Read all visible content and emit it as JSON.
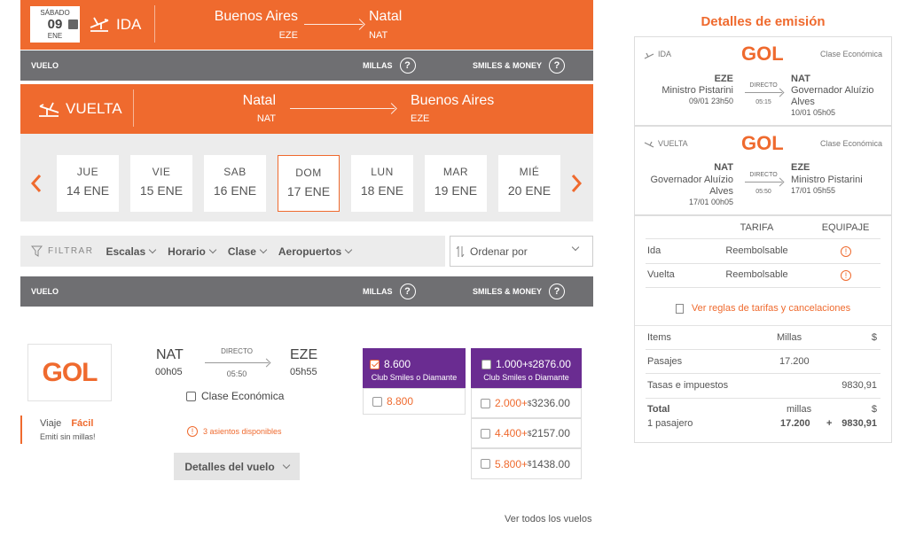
{
  "ida": {
    "day_name": "SÁBADO",
    "day_num": "09",
    "month": "ENE",
    "label": "IDA",
    "from_city": "Buenos Aires",
    "from_code": "EZE",
    "to_city": "Natal",
    "to_code": "NAT"
  },
  "header_bar": {
    "vuelo": "VUELO",
    "millas": "MILLAS",
    "smiles_money": "SMILES & MONEY",
    "q": "?"
  },
  "vuelta": {
    "label": "VUELTA",
    "from_city": "Natal",
    "from_code": "NAT",
    "to_city": "Buenos Aires",
    "to_code": "EZE"
  },
  "dates": [
    {
      "dow": "JUE",
      "date": "14 ENE"
    },
    {
      "dow": "VIE",
      "date": "15 ENE"
    },
    {
      "dow": "SAB",
      "date": "16 ENE"
    },
    {
      "dow": "DOM",
      "date": "17 ENE"
    },
    {
      "dow": "LUN",
      "date": "18 ENE"
    },
    {
      "dow": "MAR",
      "date": "19 ENE"
    },
    {
      "dow": "MIÉ",
      "date": "20 ENE"
    }
  ],
  "filters": {
    "filtrar": "FILTRAR",
    "items": [
      "Escalas",
      "Horario",
      "Clase",
      "Aeropuertos"
    ],
    "sort": "Ordenar por"
  },
  "flight": {
    "airline": "GOL",
    "tag_prefix": "Viaje",
    "tag_word": "Fácil",
    "tag_sub": "Emití sin millas!",
    "from": "NAT",
    "dep": "00h05",
    "to": "EZE",
    "arr": "05h55",
    "type": "DIRECTO",
    "duration": "05:50",
    "cabin": "Clase Económica",
    "seats": "3 asientos disponibles",
    "details_btn": "Detalles del vuelo",
    "millas_top": "8.600",
    "club": "Club Smiles o Diamante",
    "millas_bottom": "8.800",
    "sm_top_miles": "1.000+",
    "sm_top_price": "2876.00",
    "sm_rows": [
      {
        "miles": "2.000+",
        "price": "3236.00"
      },
      {
        "miles": "4.400+",
        "price": "2157.00"
      },
      {
        "miles": "5.800+",
        "price": "1438.00"
      }
    ],
    "dollar": "$"
  },
  "see_all": "Ver todos los vuelos",
  "panel": {
    "title": "Detalles de emisión",
    "ida": {
      "label": "IDA",
      "cabin": "Clase Económica",
      "from": "EZE",
      "from_name": "Ministro Pistarini",
      "from_time": "09/01 23h50",
      "type": "DIRECTO",
      "duration": "05:15",
      "to": "NAT",
      "to_name1": "Governador Aluízio",
      "to_name2": "Alves",
      "to_time": "10/01 05h05"
    },
    "vuelta": {
      "label": "VUELTA",
      "cabin": "Clase Económica",
      "from": "NAT",
      "from_name1": "Governador Aluízio",
      "from_name2": "Alves",
      "from_time": "17/01 00h05",
      "type": "DIRECTO",
      "duration": "05:50",
      "to": "EZE",
      "to_name": "Ministro Pistarini",
      "to_time": "17/01 05h55"
    },
    "tarifa": "TARIFA",
    "equipaje": "EQUIPAJE",
    "ida_row": "Ida",
    "vuelta_row": "Vuelta",
    "reembolsable": "Reembolsable",
    "rules_link": "Ver reglas de tarifas y cancelaciones",
    "items": "Items",
    "millas": "Millas",
    "dollar": "$",
    "pasajes": "Pasajes",
    "pasajes_millas": "17.200",
    "tasas": "Tasas e impuestos",
    "tasas_val": "9830,91",
    "total": "Total",
    "total_millas_label": "millas",
    "pasajero": "1 pasajero",
    "total_millas": "17.200",
    "plus": "+",
    "total_val": "9830,91"
  }
}
